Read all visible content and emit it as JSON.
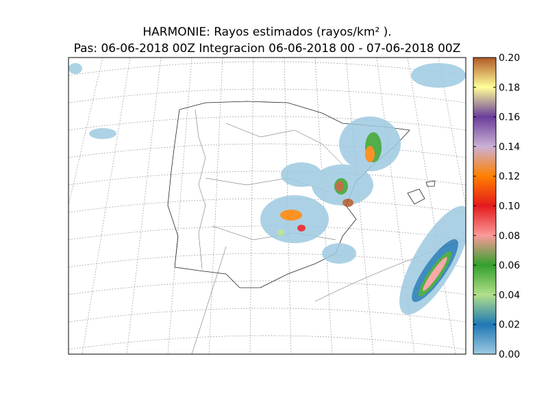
{
  "map": {
    "title": "HARMONIE: Rayos estimados  (rayos/km² ).",
    "subtitle": "Pas: 06-06-2018 00Z Integracion 06-06-2018 00 - 07-06-2018 00Z",
    "colorbar": {
      "lim": [
        0,
        0.2
      ],
      "ticks": [
        {
          "value": 0,
          "label": "0.00"
        },
        {
          "value": 0.02,
          "label": "0.02"
        },
        {
          "value": 0.04,
          "label": "0.04"
        },
        {
          "value": 0.06,
          "label": "0.06"
        },
        {
          "value": 0.08,
          "label": "0.08"
        },
        {
          "value": 0.1,
          "label": "0.10"
        },
        {
          "value": 0.12,
          "label": "0.12"
        },
        {
          "value": 0.14,
          "label": "0.14"
        },
        {
          "value": 0.16,
          "label": "0.16"
        },
        {
          "value": 0.18,
          "label": "0.18"
        },
        {
          "value": 0.2,
          "label": "0.20"
        }
      ],
      "colors": [
        "#9ecae1",
        "#1f78b4",
        "#b2df8a",
        "#33a02c",
        "#fb9a99",
        "#e31a1c",
        "#ff7f00",
        "#cab2d6",
        "#6a3d9a",
        "#ffff99",
        "#b15928"
      ]
    }
  }
}
